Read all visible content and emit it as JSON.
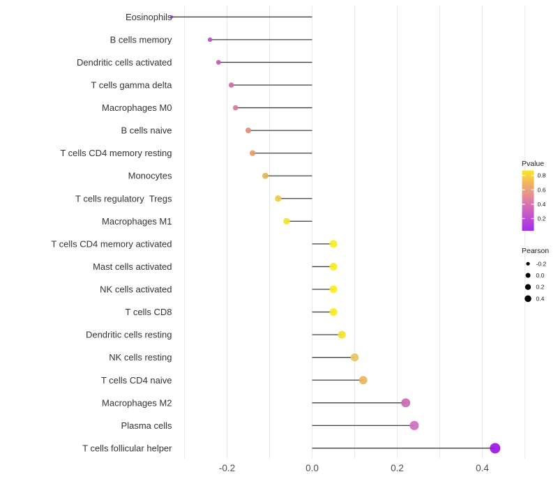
{
  "figure": {
    "background": "#ffffff"
  },
  "chart_data": {
    "type": "scatter",
    "variant": "lollipop",
    "title": "",
    "xlabel": "",
    "ylabel": "",
    "orientation": "horizontal",
    "baseline_x": 0.0,
    "xlim": [
      -0.36,
      0.51
    ],
    "x_tick_labels": [
      "-0.2",
      "0.0",
      "0.2",
      "0.4"
    ],
    "x_tick_values": [
      -0.2,
      0.0,
      0.2,
      0.4
    ],
    "gridlines_x": [
      -0.3,
      -0.2,
      -0.1,
      0.0,
      0.1,
      0.2,
      0.3,
      0.4,
      0.5
    ],
    "grid": "vertical-only-light-gray",
    "legend_position": "right",
    "stem_color": "#3f3f3f",
    "gridline_color": "#eaeaea",
    "axis_text_color": "#333333",
    "points": [
      {
        "label": "Eosinophils",
        "pearson": -0.33,
        "color": "#8e2cc0"
      },
      {
        "label": "B cells memory",
        "pearson": -0.24,
        "color": "#ba50c5"
      },
      {
        "label": "Dendritic cells activated",
        "pearson": -0.22,
        "color": "#c45bb2"
      },
      {
        "label": "T cells gamma delta",
        "pearson": -0.19,
        "color": "#ce6aa4"
      },
      {
        "label": "Macrophages M0",
        "pearson": -0.18,
        "color": "#d57c90"
      },
      {
        "label": "B cells naive",
        "pearson": -0.15,
        "color": "#df8d78"
      },
      {
        "label": "T cells CD4 memory resting",
        "pearson": -0.14,
        "color": "#e49a6e"
      },
      {
        "label": "Monocytes",
        "pearson": -0.11,
        "color": "#e9b357"
      },
      {
        "label": "T cells regulatory  Tregs",
        "pearson": -0.08,
        "color": "#eecb49"
      },
      {
        "label": "Macrophages M1",
        "pearson": -0.06,
        "color": "#f4e32b"
      },
      {
        "label": "T cells CD4 memory activated",
        "pearson": 0.05,
        "color": "#f8ed21"
      },
      {
        "label": "Mast cells activated",
        "pearson": 0.05,
        "color": "#f8ed21"
      },
      {
        "label": "NK cells activated",
        "pearson": 0.05,
        "color": "#f8ed21"
      },
      {
        "label": "T cells CD8",
        "pearson": 0.05,
        "color": "#f7eb22"
      },
      {
        "label": "Dendritic cells resting",
        "pearson": 0.07,
        "color": "#f5e32c"
      },
      {
        "label": "NK cells resting",
        "pearson": 0.1,
        "color": "#edc45c"
      },
      {
        "label": "T cells CD4 naive",
        "pearson": 0.12,
        "color": "#eab45b"
      },
      {
        "label": "Macrophages M2",
        "pearson": 0.22,
        "color": "#c96bb4"
      },
      {
        "label": "Plasma cells",
        "pearson": 0.24,
        "color": "#cc70be"
      },
      {
        "label": "T cells follicular helper",
        "pearson": 0.43,
        "color": "#9a15e4"
      }
    ],
    "legends": {
      "pvalue": {
        "title": "Pvalue",
        "tick_labels": [
          "0.8",
          "0.6",
          "0.4",
          "0.2"
        ],
        "tick_values": [
          0.8,
          0.6,
          0.4,
          0.2
        ],
        "bar_value_range": [
          0.03,
          0.87
        ],
        "gradient_bottom_to_top": [
          {
            "offset": 0.0,
            "color": "#a22cea"
          },
          {
            "offset": 0.22,
            "color": "#c04fd0"
          },
          {
            "offset": 0.45,
            "color": "#da74b0"
          },
          {
            "offset": 0.62,
            "color": "#e9968a"
          },
          {
            "offset": 0.75,
            "color": "#f0ab67"
          },
          {
            "offset": 0.88,
            "color": "#f6ca49"
          },
          {
            "offset": 1.0,
            "color": "#f9e621"
          }
        ]
      },
      "pearson": {
        "title": "Pearson",
        "labels": [
          "-0.2",
          "0.0",
          "0.2",
          "0.4"
        ],
        "values": [
          -0.2,
          0.0,
          0.2,
          0.4
        ],
        "dot_color": "#000000"
      }
    }
  }
}
